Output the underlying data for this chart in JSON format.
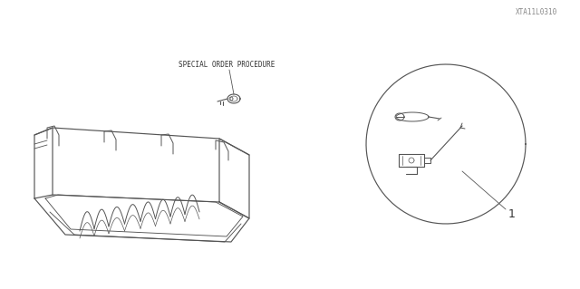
{
  "bg_color": "#ffffff",
  "line_color": "#555555",
  "text_color": "#333333",
  "part_number_label": "1",
  "special_order_text": "SPECIAL ORDER PROCEDURE",
  "diagram_code": "XTA11L0310",
  "figsize": [
    6.4,
    3.19
  ],
  "dpi": 100
}
